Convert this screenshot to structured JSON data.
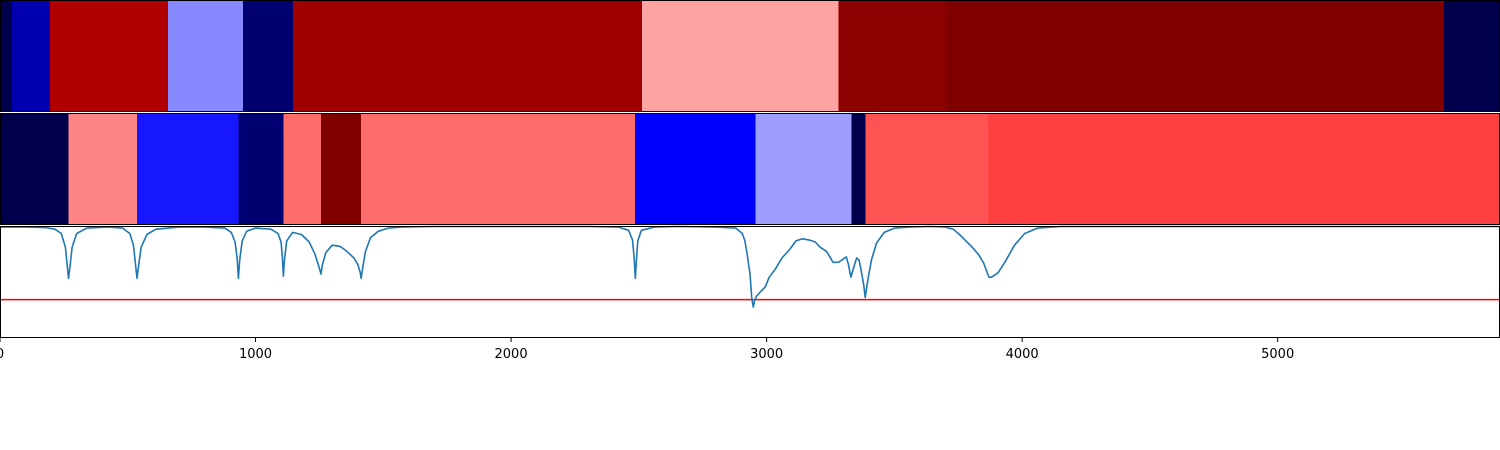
{
  "chart_data": {
    "type": "heatmap",
    "title": "",
    "xlabel": "",
    "ylabel": "",
    "xlim": [
      0,
      5870
    ],
    "x_ticks": [
      0,
      1000,
      2000,
      3000,
      4000,
      5000
    ],
    "x_tick_labels": [
      "0",
      "1000",
      "2000",
      "3000",
      "4000",
      "5000"
    ],
    "colormap": "seismic",
    "grid": false,
    "tracks": [
      {
        "segments": [
          {
            "start": 0,
            "end": 45,
            "color": "#00004c"
          },
          {
            "start": 45,
            "end": 195,
            "color": "#0000b0"
          },
          {
            "start": 195,
            "end": 657,
            "color": "#b00000"
          },
          {
            "start": 657,
            "end": 950,
            "color": "#8888ff"
          },
          {
            "start": 950,
            "end": 1147,
            "color": "#000071"
          },
          {
            "start": 1147,
            "end": 2513,
            "color": "#9e0000"
          },
          {
            "start": 2513,
            "end": 3282,
            "color": "#ffa2a2"
          },
          {
            "start": 3282,
            "end": 3700,
            "color": "#8c0000"
          },
          {
            "start": 3700,
            "end": 5650,
            "color": "#800000"
          },
          {
            "start": 5650,
            "end": 5870,
            "color": "#00004c"
          }
        ]
      },
      {
        "segments": [
          {
            "start": 0,
            "end": 268,
            "color": "#00004c"
          },
          {
            "start": 268,
            "end": 536,
            "color": "#ff8484"
          },
          {
            "start": 536,
            "end": 933,
            "color": "#1616ff"
          },
          {
            "start": 933,
            "end": 1109,
            "color": "#000070"
          },
          {
            "start": 1109,
            "end": 1256,
            "color": "#ff6c6c"
          },
          {
            "start": 1256,
            "end": 1413,
            "color": "#800000"
          },
          {
            "start": 1413,
            "end": 2484,
            "color": "#ff6c6c"
          },
          {
            "start": 2484,
            "end": 2956,
            "color": "#0000ff"
          },
          {
            "start": 2956,
            "end": 3332,
            "color": "#9e9eff"
          },
          {
            "start": 3332,
            "end": 3387,
            "color": "#00004c"
          },
          {
            "start": 3387,
            "end": 3868,
            "color": "#ff5252"
          },
          {
            "start": 3868,
            "end": 5870,
            "color": "#ff4040"
          }
        ]
      }
    ],
    "line_plot": {
      "ylim": [
        -0.05,
        1.0
      ],
      "line_color": "#1f77b4",
      "threshold": 0.31,
      "threshold_color": "#ff0000",
      "series": {
        "x": [
          0,
          100,
          180,
          215,
          240,
          256,
          262,
          268,
          274,
          282,
          300,
          340,
          420,
          480,
          508,
          522,
          530,
          536,
          542,
          552,
          575,
          610,
          700,
          800,
          880,
          905,
          920,
          928,
          933,
          938,
          948,
          965,
          1000,
          1060,
          1088,
          1100,
          1105,
          1109,
          1113,
          1122,
          1145,
          1180,
          1210,
          1232,
          1248,
          1256,
          1262,
          1275,
          1300,
          1330,
          1348,
          1363,
          1385,
          1400,
          1410,
          1413,
          1418,
          1430,
          1450,
          1480,
          1520,
          1570,
          1700,
          2000,
          2300,
          2420,
          2460,
          2475,
          2482,
          2486,
          2490,
          2496,
          2510,
          2560,
          2650,
          2800,
          2880,
          2905,
          2915,
          2925,
          2935,
          2942,
          2948,
          2953,
          2960,
          2975,
          2995,
          3010,
          3035,
          3060,
          3090,
          3115,
          3140,
          3165,
          3190,
          3210,
          3235,
          3260,
          3280,
          3295,
          3305,
          3312,
          3320,
          3330,
          3342,
          3352,
          3362,
          3370,
          3380,
          3386,
          3390,
          3398,
          3410,
          3430,
          3460,
          3500,
          3560,
          3640,
          3700,
          3730,
          3755,
          3780,
          3805,
          3830,
          3850,
          3862,
          3870,
          3880,
          3905,
          3935,
          3970,
          4010,
          4060,
          4150,
          4400,
          5000,
          5870
        ],
        "y": [
          0.99,
          0.99,
          0.985,
          0.97,
          0.93,
          0.8,
          0.65,
          0.51,
          0.62,
          0.8,
          0.93,
          0.98,
          0.99,
          0.98,
          0.93,
          0.82,
          0.65,
          0.51,
          0.62,
          0.8,
          0.92,
          0.97,
          0.99,
          0.99,
          0.98,
          0.94,
          0.85,
          0.7,
          0.51,
          0.68,
          0.86,
          0.95,
          0.98,
          0.97,
          0.93,
          0.85,
          0.7,
          0.53,
          0.68,
          0.86,
          0.94,
          0.92,
          0.85,
          0.74,
          0.62,
          0.55,
          0.64,
          0.75,
          0.82,
          0.81,
          0.78,
          0.75,
          0.7,
          0.64,
          0.56,
          0.51,
          0.59,
          0.76,
          0.89,
          0.95,
          0.98,
          0.99,
          0.995,
          0.995,
          0.995,
          0.99,
          0.96,
          0.87,
          0.7,
          0.51,
          0.66,
          0.86,
          0.96,
          0.99,
          0.995,
          0.99,
          0.98,
          0.93,
          0.86,
          0.72,
          0.55,
          0.32,
          0.24,
          0.3,
          0.34,
          0.38,
          0.43,
          0.52,
          0.6,
          0.7,
          0.78,
          0.86,
          0.88,
          0.87,
          0.85,
          0.8,
          0.76,
          0.66,
          0.66,
          0.68,
          0.7,
          0.71,
          0.64,
          0.52,
          0.62,
          0.7,
          0.68,
          0.58,
          0.45,
          0.33,
          0.4,
          0.52,
          0.68,
          0.84,
          0.94,
          0.98,
          0.99,
          0.995,
          0.99,
          0.97,
          0.92,
          0.86,
          0.8,
          0.73,
          0.65,
          0.57,
          0.52,
          0.52,
          0.56,
          0.67,
          0.82,
          0.93,
          0.98,
          0.995,
          0.995,
          0.995,
          0.995
        ]
      }
    }
  }
}
